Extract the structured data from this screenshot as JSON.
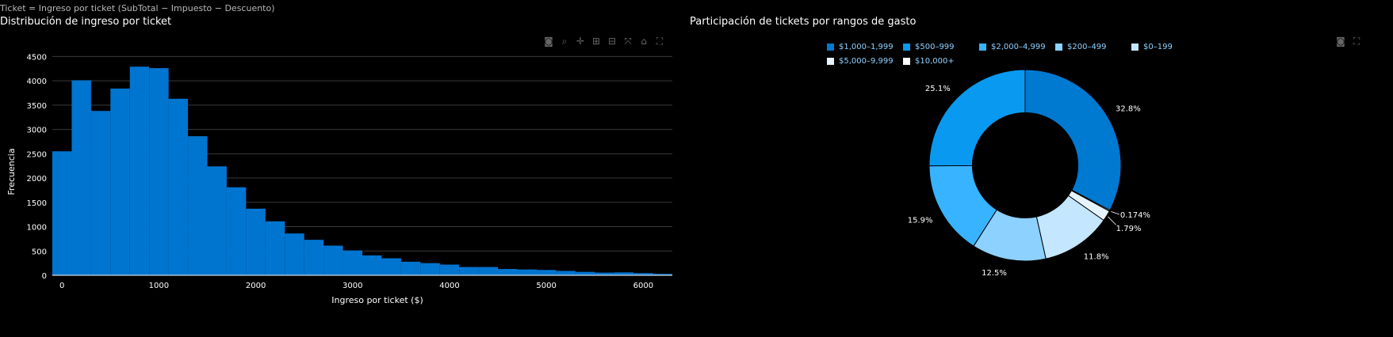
{
  "caption": "Ticket = Ingreso por ticket (SubTotal − Impuesto − Descuento)",
  "chart_data": [
    {
      "type": "bar",
      "title": "Distribución de ingreso por ticket",
      "xlabel": "Ingreso por ticket ($)",
      "ylabel": "Frecuencia",
      "xlim": [
        -100,
        6300
      ],
      "ylim": [
        0,
        4750
      ],
      "xticks": [
        0,
        1000,
        2000,
        3000,
        4000,
        5000,
        6000
      ],
      "yticks": [
        0,
        500,
        1000,
        1500,
        2000,
        2500,
        3000,
        3500,
        4000,
        4500
      ],
      "grid": true,
      "color": "#0075D0",
      "bin_start": -100,
      "bin_width": 200,
      "values": [
        2550,
        4010,
        3380,
        3840,
        4290,
        4260,
        3630,
        2860,
        2240,
        1810,
        1370,
        1110,
        860,
        730,
        610,
        510,
        410,
        350,
        280,
        250,
        220,
        170,
        170,
        130,
        120,
        110,
        90,
        70,
        55,
        60,
        45,
        30
      ]
    },
    {
      "type": "pie",
      "title": "Participación de tickets por rangos de gasto",
      "hole": 0.55,
      "legend_position": "top",
      "slices": [
        {
          "label": "$1,000–1,999",
          "percent": 32.8,
          "display": "32.8%",
          "color": "#0079D1"
        },
        {
          "label": "$10,000+",
          "percent": 0.174,
          "display": "0.174%",
          "color": "#FFFFFF"
        },
        {
          "label": "$5,000–9,999",
          "percent": 1.79,
          "display": "1.79%",
          "color": "#E6F4FF"
        },
        {
          "label": "$0–199",
          "percent": 11.8,
          "display": "11.8%",
          "color": "#C4E6FF"
        },
        {
          "label": "$200–499",
          "percent": 12.5,
          "display": "12.5%",
          "color": "#8CD1FF"
        },
        {
          "label": "$2,000–4,999",
          "percent": 15.9,
          "display": "15.9%",
          "color": "#38B3FF"
        },
        {
          "label": "$500–999",
          "percent": 25.1,
          "display": "25.1%",
          "color": "#0A99F0"
        }
      ],
      "legend": [
        {
          "label": "$1,000–1,999",
          "color": "#0079D1"
        },
        {
          "label": "$500–999",
          "color": "#0A99F0"
        },
        {
          "label": "$2,000–4,999",
          "color": "#38B3FF"
        },
        {
          "label": "$200–499",
          "color": "#8CD1FF"
        },
        {
          "label": "$0–199",
          "color": "#C4E6FF"
        },
        {
          "label": "$5,000–9,999",
          "color": "#E6F4FF"
        },
        {
          "label": "$10,000+",
          "color": "#FFFFFF"
        }
      ]
    }
  ],
  "modebar_hist": [
    "camera-icon",
    "zoom-icon",
    "pan-icon",
    "zoom-in-icon",
    "zoom-out-icon",
    "autoscale-icon",
    "home-icon",
    "fullscreen-icon"
  ],
  "modebar_pie": [
    "camera-icon",
    "fullscreen-icon"
  ]
}
